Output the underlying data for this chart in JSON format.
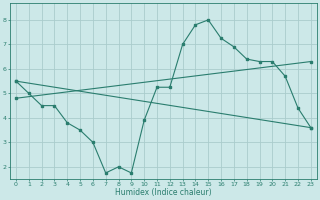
{
  "xlabel": "Humidex (Indice chaleur)",
  "ylabel": "",
  "bg_color": "#cce8e8",
  "grid_color": "#aacccc",
  "line_color": "#2a7d6e",
  "xlim": [
    -0.5,
    23.5
  ],
  "ylim": [
    1.5,
    8.7
  ],
  "xticks": [
    0,
    1,
    2,
    3,
    4,
    5,
    6,
    7,
    8,
    9,
    10,
    11,
    12,
    13,
    14,
    15,
    16,
    17,
    18,
    19,
    20,
    21,
    22,
    23
  ],
  "yticks": [
    2,
    3,
    4,
    5,
    6,
    7,
    8
  ],
  "line1_x": [
    0,
    1,
    2,
    3,
    4,
    5,
    6,
    7,
    8,
    9,
    10,
    11,
    12,
    13,
    14,
    15,
    16,
    17,
    18,
    19,
    20,
    21,
    22,
    23
  ],
  "line1_y": [
    5.5,
    5.0,
    4.5,
    4.5,
    3.8,
    3.5,
    3.0,
    1.75,
    2.0,
    1.75,
    3.9,
    5.25,
    5.25,
    7.0,
    7.8,
    8.0,
    7.25,
    6.9,
    6.4,
    6.3,
    6.3,
    5.7,
    4.4,
    3.6
  ],
  "line2_x": [
    0,
    23
  ],
  "line2_y": [
    5.5,
    3.6
  ],
  "line3_x": [
    0,
    23
  ],
  "line3_y": [
    4.8,
    6.3
  ]
}
